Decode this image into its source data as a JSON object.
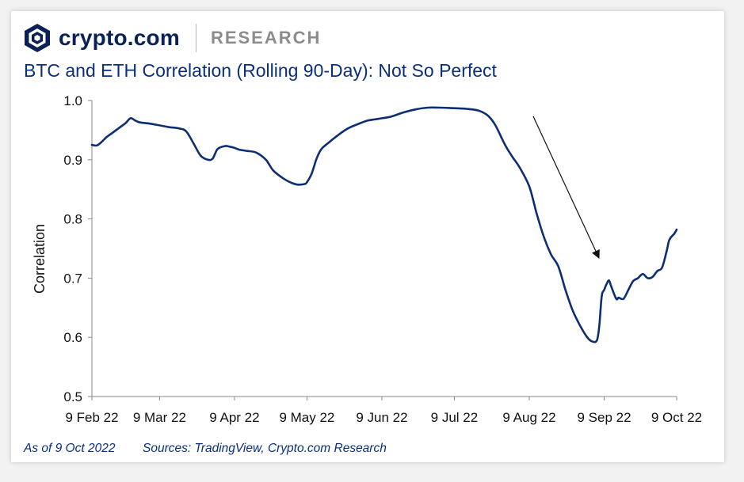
{
  "header": {
    "brand": "crypto.com",
    "section": "RESEARCH"
  },
  "colors": {
    "brand_navy": "#0a2158",
    "title_blue": "#0a2f7e",
    "line_navy": "#0d2e73",
    "research_grey": "#8c8c8c"
  },
  "chart_data": {
    "type": "line",
    "title": "BTC and ETH Correlation (Rolling 90-Day): Not So Perfect",
    "xlabel": "",
    "ylabel": "Correlation",
    "ylim": [
      0.5,
      1.0
    ],
    "yticks": [
      "0.5",
      "0.6",
      "0.7",
      "0.8",
      "0.9",
      "1.0"
    ],
    "xticks": [
      "9 Feb 22",
      "9 Mar 22",
      "9 Apr 22",
      "9 May 22",
      "9 Jun 22",
      "9 Jul 22",
      "9 Aug 22",
      "9 Sep 22",
      "9 Oct 22"
    ],
    "grid": false,
    "legend": "none",
    "annotation": "arrow",
    "series": [
      {
        "x": [
          "2022-02-09",
          "2022-02-11",
          "2022-02-13",
          "2022-02-15",
          "2022-02-17",
          "2022-02-19",
          "2022-02-21",
          "2022-02-23",
          "2022-02-25",
          "2022-02-27",
          "2022-03-01",
          "2022-03-05",
          "2022-03-09",
          "2022-03-13",
          "2022-03-17",
          "2022-03-20",
          "2022-03-23",
          "2022-03-26",
          "2022-03-29",
          "2022-03-31",
          "2022-04-02",
          "2022-04-05",
          "2022-04-07",
          "2022-04-09",
          "2022-04-11",
          "2022-04-14",
          "2022-04-18",
          "2022-04-22",
          "2022-04-25",
          "2022-04-29",
          "2022-05-02",
          "2022-05-05",
          "2022-05-08",
          "2022-05-09",
          "2022-05-11",
          "2022-05-13",
          "2022-05-15",
          "2022-05-18",
          "2022-05-22",
          "2022-05-26",
          "2022-05-30",
          "2022-06-03",
          "2022-06-06",
          "2022-06-09",
          "2022-06-13",
          "2022-06-18",
          "2022-06-23",
          "2022-06-28",
          "2022-07-03",
          "2022-07-09",
          "2022-07-14",
          "2022-07-19",
          "2022-07-23",
          "2022-07-26",
          "2022-07-30",
          "2022-08-02",
          "2022-08-05",
          "2022-08-09",
          "2022-08-12",
          "2022-08-15",
          "2022-08-18",
          "2022-08-21",
          "2022-08-24",
          "2022-08-27",
          "2022-08-30",
          "2022-09-02",
          "2022-09-04",
          "2022-09-06",
          "2022-09-07",
          "2022-09-08",
          "2022-09-09",
          "2022-09-10",
          "2022-09-11",
          "2022-09-12",
          "2022-09-14",
          "2022-09-15",
          "2022-09-17",
          "2022-09-19",
          "2022-09-21",
          "2022-09-23",
          "2022-09-25",
          "2022-09-27",
          "2022-09-29",
          "2022-10-01",
          "2022-10-03",
          "2022-10-05",
          "2022-10-06",
          "2022-10-08",
          "2022-10-09"
        ],
        "values": [
          0.925,
          0.924,
          0.93,
          0.938,
          0.944,
          0.95,
          0.956,
          0.962,
          0.97,
          0.966,
          0.963,
          0.961,
          0.958,
          0.955,
          0.953,
          0.948,
          0.928,
          0.907,
          0.9,
          0.902,
          0.918,
          0.923,
          0.922,
          0.92,
          0.917,
          0.915,
          0.912,
          0.9,
          0.882,
          0.869,
          0.862,
          0.858,
          0.859,
          0.862,
          0.877,
          0.902,
          0.918,
          0.929,
          0.942,
          0.953,
          0.96,
          0.966,
          0.968,
          0.97,
          0.973,
          0.98,
          0.985,
          0.988,
          0.988,
          0.987,
          0.986,
          0.983,
          0.974,
          0.958,
          0.925,
          0.905,
          0.887,
          0.855,
          0.81,
          0.77,
          0.74,
          0.72,
          0.68,
          0.645,
          0.62,
          0.6,
          0.593,
          0.595,
          0.62,
          0.67,
          0.68,
          0.69,
          0.696,
          0.685,
          0.665,
          0.667,
          0.665,
          0.68,
          0.695,
          0.7,
          0.707,
          0.7,
          0.702,
          0.712,
          0.718,
          0.748,
          0.765,
          0.775,
          0.782
        ]
      }
    ]
  },
  "footer": {
    "as_of": "As of 9 Oct 2022",
    "sources": "Sources: TradingView, Crypto.com Research"
  }
}
